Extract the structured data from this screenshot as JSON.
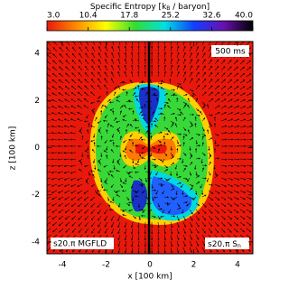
{
  "chart_data": {
    "type": "field",
    "colorbar_label": {
      "prefix": "Specific Entropy [k",
      "sub": "B",
      "suffix": " / baryon]"
    },
    "clim": [
      3,
      40
    ],
    "cticks": [
      {
        "value": 3,
        "label": "3.0"
      },
      10.4,
      17.8,
      25.2,
      32.6,
      {
        "value": 40,
        "label": "40.0"
      }
    ],
    "colors": [
      "#e8190c",
      "#ff8c00",
      "#ffff00",
      "#33dd33",
      "#00e0e0",
      "#1040ff",
      "#6a10b0",
      "#000000"
    ],
    "x_label": "x [100 km]",
    "y_label": "z [100 km]",
    "xlim": [
      -4.7,
      4.7
    ],
    "ylim": [
      -4.5,
      4.5
    ],
    "xticks": [
      -4,
      -2,
      0,
      2,
      4
    ],
    "yticks": [
      -4,
      -2,
      0,
      2,
      4
    ],
    "time_label": "500 ms",
    "left_label": "s20.π MGFLD",
    "right_label": {
      "main": "s20.π S",
      "sub": "n"
    }
  }
}
